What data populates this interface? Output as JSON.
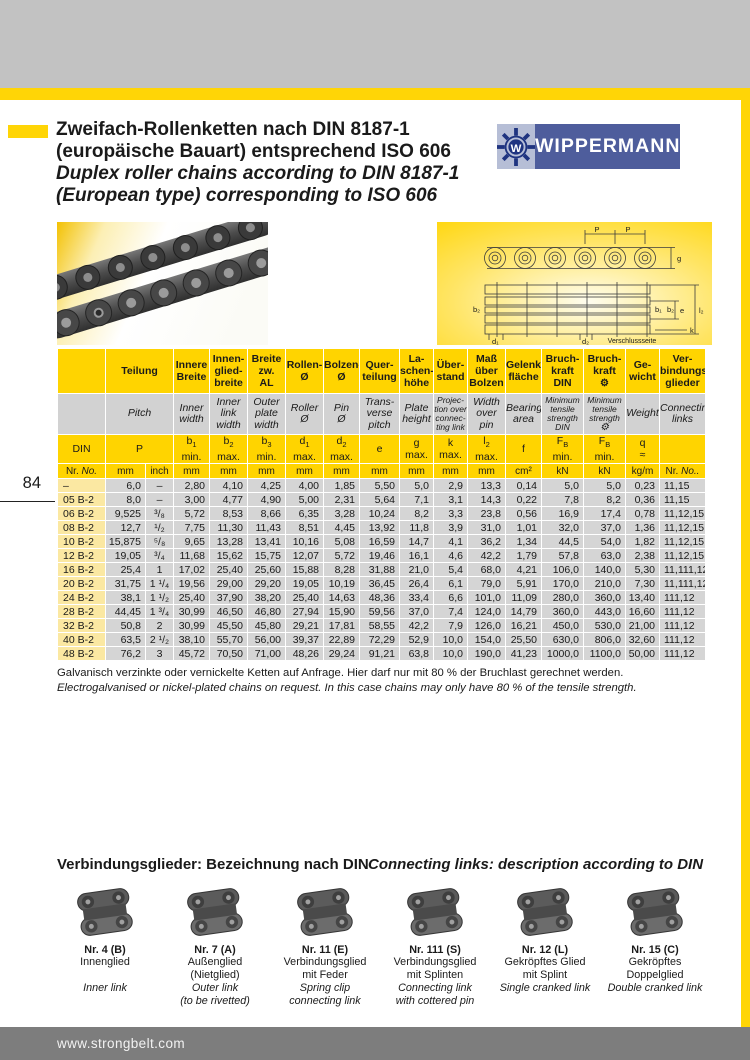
{
  "page": {
    "number": "84",
    "url": "www.strongbelt.com"
  },
  "header": {
    "title_de_1": "Zweifach-Rollenketten nach DIN 8187-1",
    "title_de_2": "(europäische Bauart) entsprechend ISO 606",
    "title_en_1": "Duplex roller chains according to DIN 8187-1",
    "title_en_2": "(European type) corresponding to ISO 606",
    "brand": "WIPPERMANN",
    "brand_mark": "W"
  },
  "diagram": {
    "labels": {
      "p1": "P",
      "p2": "P",
      "g": "g",
      "e": "e",
      "l2": "l₂",
      "b1": "b₁",
      "b2": "b₂",
      "b2l": "b₂",
      "k": "k",
      "d1": "d₁",
      "d2": "d₂",
      "seal": "Verschlussseite"
    }
  },
  "table": {
    "header_de": [
      {
        "t": ""
      },
      {
        "t": "Teilung",
        "cs": 2
      },
      {
        "t": "Innere\nBreite"
      },
      {
        "t": "Innen-\nglied-\nbreite"
      },
      {
        "t": "Breite\nzw.\nAL"
      },
      {
        "t": "Rollen-\nØ"
      },
      {
        "t": "Bolzen-\nØ"
      },
      {
        "t": "Quer-\nteilung"
      },
      {
        "t": "La-\nschen-\nhöhe"
      },
      {
        "t": "Über-\nstand"
      },
      {
        "t": "Maß\nüber\nBolzen"
      },
      {
        "t": "Gelenk-\nfläche"
      },
      {
        "t": "Bruch-\nkraft\nDIN"
      },
      {
        "t": "Bruch-\nkraft",
        "icon": "gear"
      },
      {
        "t": "Ge-\nwicht"
      },
      {
        "t": "Ver-\nbindungs-\nglieder"
      }
    ],
    "header_en": [
      {
        "t": ""
      },
      {
        "t": "Pitch",
        "cs": 2
      },
      {
        "t": "Inner\nwidth"
      },
      {
        "t": "Inner\nlink\nwidth"
      },
      {
        "t": "Outer\nplate\nwidth"
      },
      {
        "t": "Roller\nØ"
      },
      {
        "t": "Pin\nØ"
      },
      {
        "t": "Trans-\nverse\npitch"
      },
      {
        "t": "Plate\nheight"
      },
      {
        "t": "Projec-\ntion over\nconnec-\nting link",
        "small": true
      },
      {
        "t": "Width\nover\npin"
      },
      {
        "t": "Bearing\narea"
      },
      {
        "t": "Minimum\ntensile\nstrength\nDIN",
        "small": true
      },
      {
        "t": "Minimum\ntensile\nstrength",
        "small": true,
        "icon": "gear"
      },
      {
        "t": "Weight"
      },
      {
        "t": "Connecting\nlinks"
      }
    ],
    "symbols": [
      {
        "t": "DIN"
      },
      {
        "t": "P",
        "cs": 2
      },
      {
        "t": "b_1_\nmin."
      },
      {
        "t": "b_2_\nmax."
      },
      {
        "t": "b_3_\nmin."
      },
      {
        "t": "d_1_\nmax."
      },
      {
        "t": "d_2_\nmax."
      },
      {
        "t": "e"
      },
      {
        "t": "g\nmax."
      },
      {
        "t": "k\nmax."
      },
      {
        "t": "l_2_\nmax."
      },
      {
        "t": "f"
      },
      {
        "t": "F_B_\nmin."
      },
      {
        "t": "F_B_\nmin."
      },
      {
        "t": "q\n≈"
      },
      {
        "t": ""
      }
    ],
    "units": [
      "Nr. No.",
      "mm",
      "inch",
      "mm",
      "mm",
      "mm",
      "mm",
      "mm",
      "mm",
      "mm",
      "mm",
      "mm",
      "cm²",
      "kN",
      "kN",
      "kg/m",
      "Nr. No.."
    ],
    "rows": [
      [
        "–",
        "6,0",
        "–",
        "2,80",
        "4,10",
        "4,25",
        "4,00",
        "1,85",
        "5,50",
        "5,0",
        "2,9",
        "13,3",
        "0,14",
        "5,0",
        "5,0",
        "0,23",
        "11,15"
      ],
      [
        "05 B-2",
        "8,0",
        "–",
        "3,00",
        "4,77",
        "4,90",
        "5,00",
        "2,31",
        "5,64",
        "7,1",
        "3,1",
        "14,3",
        "0,22",
        "7,8",
        "8,2",
        "0,36",
        "11,15"
      ],
      [
        "06 B-2",
        "9,525",
        "³/₈",
        "5,72",
        "8,53",
        "8,66",
        "6,35",
        "3,28",
        "10,24",
        "8,2",
        "3,3",
        "23,8",
        "0,56",
        "16,9",
        "17,4",
        "0,78",
        "11,12,15"
      ],
      [
        "08 B-2",
        "12,7",
        "¹/₂",
        "7,75",
        "11,30",
        "11,43",
        "8,51",
        "4,45",
        "13,92",
        "11,8",
        "3,9",
        "31,0",
        "1,01",
        "32,0",
        "37,0",
        "1,36",
        "11,12,15"
      ],
      [
        "10 B-2",
        "15,875",
        "⁵/₈",
        "9,65",
        "13,28",
        "13,41",
        "10,16",
        "5,08",
        "16,59",
        "14,7",
        "4,1",
        "36,2",
        "1,34",
        "44,5",
        "54,0",
        "1,82",
        "11,12,15"
      ],
      [
        "12 B-2",
        "19,05",
        "³/₄",
        "11,68",
        "15,62",
        "15,75",
        "12,07",
        "5,72",
        "19,46",
        "16,1",
        "4,6",
        "42,2",
        "1,79",
        "57,8",
        "63,0",
        "2,38",
        "11,12,15"
      ],
      [
        "16 B-2",
        "25,4",
        "1",
        "17,02",
        "25,40",
        "25,60",
        "15,88",
        "8,28",
        "31,88",
        "21,0",
        "5,4",
        "68,0",
        "4,21",
        "106,0",
        "140,0",
        "5,30",
        "11,111,12"
      ],
      [
        "20 B-2",
        "31,75",
        "1 ¹/₄",
        "19,56",
        "29,00",
        "29,20",
        "19,05",
        "10,19",
        "36,45",
        "26,4",
        "6,1",
        "79,0",
        "5,91",
        "170,0",
        "210,0",
        "7,30",
        "11,111,12"
      ],
      [
        "24 B-2",
        "38,1",
        "1 ¹/₂",
        "25,40",
        "37,90",
        "38,20",
        "25,40",
        "14,63",
        "48,36",
        "33,4",
        "6,6",
        "101,0",
        "11,09",
        "280,0",
        "360,0",
        "13,40",
        "111,12"
      ],
      [
        "28 B-2",
        "44,45",
        "1 ³/₄",
        "30,99",
        "46,50",
        "46,80",
        "27,94",
        "15,90",
        "59,56",
        "37,0",
        "7,4",
        "124,0",
        "14,79",
        "360,0",
        "443,0",
        "16,60",
        "111,12"
      ],
      [
        "32 B-2",
        "50,8",
        "2",
        "30,99",
        "45,50",
        "45,80",
        "29,21",
        "17,81",
        "58,55",
        "42,2",
        "7,9",
        "126,0",
        "16,21",
        "450,0",
        "530,0",
        "21,00",
        "111,12"
      ],
      [
        "40 B-2",
        "63,5",
        "2 ¹/₂",
        "38,10",
        "55,70",
        "56,00",
        "39,37",
        "22,89",
        "72,29",
        "52,9",
        "10,0",
        "154,0",
        "25,50",
        "630,0",
        "806,0",
        "32,60",
        "111,12"
      ],
      [
        "48 B-2",
        "76,2",
        "3",
        "45,72",
        "70,50",
        "71,00",
        "48,26",
        "29,24",
        "91,21",
        "63,8",
        "10,0",
        "190,0",
        "41,23",
        "1000,0",
        "1100,0",
        "50,00",
        "111,12"
      ]
    ]
  },
  "notes": {
    "de": "Galvanisch verzinkte oder vernickelte Ketten auf Anfrage. Hier darf nur mit 80 % der Bruchlast gerechnet werden.",
    "en": "Electrogalvanised or nickel-plated chains on request. In this case chains may only have 80 % of the tensile strength."
  },
  "links_section": {
    "title_de": "Verbindungsglieder: Bezeichnung nach DIN",
    "title_en": "Connecting links: description according to DIN",
    "items": [
      {
        "code": "Nr. 4 (B)",
        "de": "Innenglied",
        "en": "Inner link"
      },
      {
        "code": "Nr. 7 (A)",
        "de": "Außenglied\n(Nietglied)",
        "en": "Outer link\n(to be rivetted)"
      },
      {
        "code": "Nr. 11 (E)",
        "de": "Verbindungsglied\nmit Feder",
        "en": "Spring clip\nconnecting link"
      },
      {
        "code": "Nr. 111 (S)",
        "de": "Verbindungsglied\nmit Splinten",
        "en": "Connecting link\nwith cottered pin"
      },
      {
        "code": "Nr. 12 (L)",
        "de": "Gekröpftes Glied\nmit Splint",
        "en": "Single cranked link"
      },
      {
        "code": "Nr. 15 (C)",
        "de": "Gekröpftes\nDoppelglied",
        "en": "Double cranked link"
      }
    ]
  },
  "colors": {
    "accent_yellow": "#ffd400",
    "pale_yellow": "#fbe8a2",
    "cell_gray": "#d5d5d5",
    "logo_blue": "#4e5d9c",
    "logo_pale": "#b6bed6",
    "footer_gray": "#7d7d7d"
  }
}
